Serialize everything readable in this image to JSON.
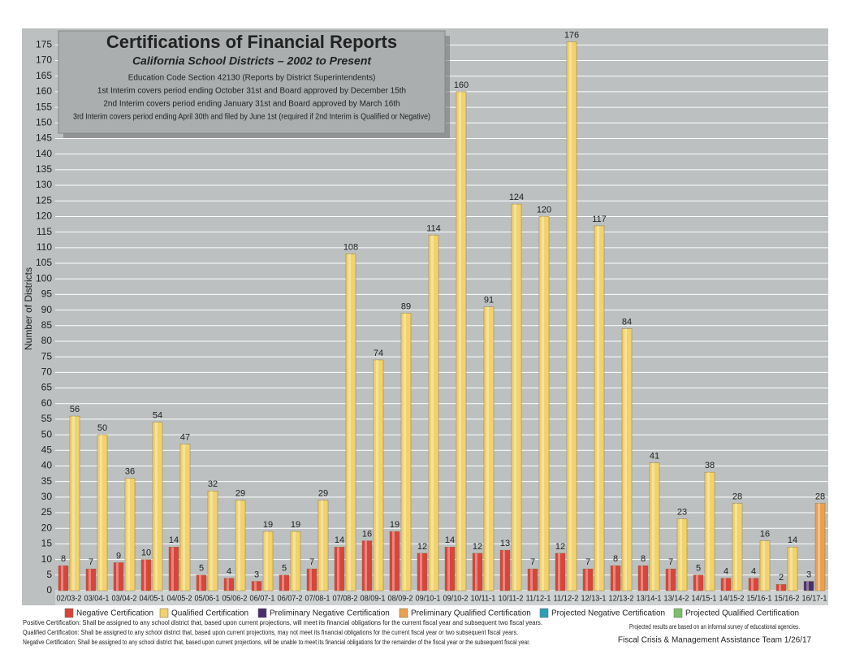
{
  "chart_data": {
    "type": "bar",
    "title": "Certifications of Financial Reports",
    "subtitle": "California School Districts – 2002 to Present",
    "notes": [
      "Education Code Section 42130 (Reports by District Superintendents)",
      "1st Interim covers period ending October 31st and Board approved by December 15th",
      "2nd Interim covers period ending January 31st and Board approved by March 16th",
      "3rd Interim covers period ending April 30th and filed by June 1st (required if 2nd Interim is Qualified or Negative)"
    ],
    "y_label": "Number of Districts",
    "categories": [
      "02/03-2",
      "03/04-1",
      "03/04-2",
      "04/05-1",
      "04/05-2",
      "05/06-1",
      "05/06-2",
      "06/07-1",
      "06/07-2",
      "07/08-1",
      "07/08-2",
      "08/09-1",
      "08/09-2",
      "09/10-1",
      "09/10-2",
      "10/11-1",
      "10/11-2",
      "11/12-1",
      "11/12-2",
      "12/13-1",
      "12/13-2",
      "13/14-1",
      "13/14-2",
      "14/15-1",
      "14/15-2",
      "15/16-1",
      "15/16-2",
      "16/17-1"
    ],
    "series": [
      {
        "name": "Negative Certification",
        "color": "#d8453b",
        "values": [
          8,
          7,
          9,
          10,
          14,
          5,
          4,
          3,
          5,
          7,
          14,
          16,
          19,
          12,
          14,
          12,
          13,
          7,
          12,
          7,
          8,
          8,
          7,
          5,
          4,
          4,
          2,
          null
        ]
      },
      {
        "name": "Qualified Certification",
        "color": "#f2d26a",
        "values": [
          56,
          50,
          36,
          54,
          47,
          32,
          29,
          19,
          19,
          29,
          108,
          74,
          89,
          114,
          160,
          91,
          124,
          120,
          176,
          117,
          84,
          41,
          23,
          38,
          28,
          16,
          14,
          null
        ]
      },
      {
        "name": "Preliminary Negative Certification",
        "color": "#4b2f6b",
        "values": [
          null,
          null,
          null,
          null,
          null,
          null,
          null,
          null,
          null,
          null,
          null,
          null,
          null,
          null,
          null,
          null,
          null,
          null,
          null,
          null,
          null,
          null,
          null,
          null,
          null,
          null,
          null,
          3
        ]
      },
      {
        "name": "Preliminary Qualified Certification",
        "color": "#e9a14f",
        "values": [
          null,
          null,
          null,
          null,
          null,
          null,
          null,
          null,
          null,
          null,
          null,
          null,
          null,
          null,
          null,
          null,
          null,
          null,
          null,
          null,
          null,
          null,
          null,
          null,
          null,
          null,
          null,
          28
        ]
      },
      {
        "name": "Projected Negative Certification",
        "color": "#2a9fb8",
        "values": [
          null,
          null,
          null,
          null,
          null,
          null,
          null,
          null,
          null,
          null,
          null,
          null,
          null,
          null,
          null,
          null,
          null,
          null,
          null,
          null,
          null,
          null,
          null,
          null,
          null,
          null,
          null,
          null
        ]
      },
      {
        "name": "Projected Qualified Certification",
        "color": "#7bbf69",
        "values": [
          null,
          null,
          null,
          null,
          null,
          null,
          null,
          null,
          null,
          null,
          null,
          null,
          null,
          null,
          null,
          null,
          null,
          null,
          null,
          null,
          null,
          null,
          null,
          null,
          null,
          null,
          null,
          null
        ]
      }
    ],
    "ylim": [
      0,
      179
    ],
    "yticks": [
      0,
      5,
      10,
      15,
      20,
      25,
      30,
      35,
      40,
      45,
      50,
      55,
      60,
      65,
      70,
      75,
      80,
      85,
      90,
      95,
      100,
      105,
      110,
      115,
      120,
      125,
      130,
      135,
      140,
      145,
      150,
      155,
      160,
      165,
      170,
      175
    ],
    "grid": true,
    "footnotes": [
      "Positive Certification:  Shall be assigned to any school district that, based upon current projections, will meet its financial obligations for the current fiscal year and subsequent two fiscal years.",
      "Qualified Certification:  Shall be assigned to any school district that, based upon current projections, may not meet its financial obligations for the current fiscal year or two subsequent fiscal years.",
      "Negative Certification:  Shall be assigned to any school district that, based upon current projections, will be unable to meet its financial obligations for the remainder of the fiscal year or the subsequent fiscal year."
    ],
    "projection_note": "Projected results are based on an informal survey of educational agencies.",
    "credit": "Fiscal Crisis & Management Assistance Team  1/26/17"
  }
}
